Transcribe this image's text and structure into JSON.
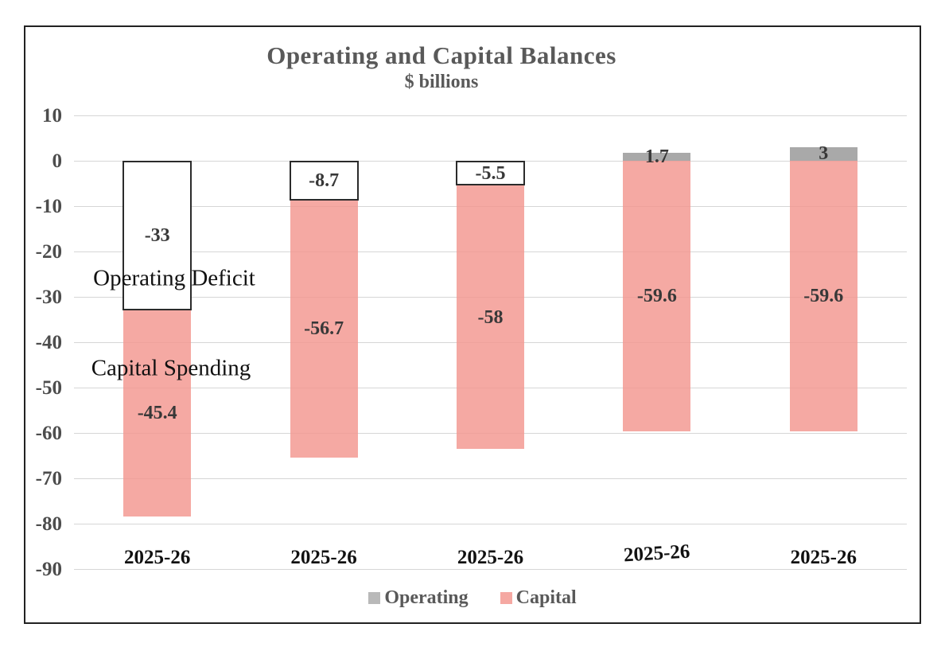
{
  "chart_data": {
    "type": "bar",
    "stacked": true,
    "title": "Operating and Capital Balances",
    "subtitle": "$ billions",
    "categories": [
      "2025-26",
      "2025-26",
      "2025-26",
      "2025-26",
      "2025-26"
    ],
    "series": [
      {
        "name": "Operating",
        "values": [
          -33,
          -8.7,
          -5.5,
          1.7,
          3
        ],
        "labels": [
          "-33",
          "-8.7",
          "-5.5",
          "1.7",
          "3"
        ],
        "positive_color": "#ABABAB",
        "negative_style": "white-outlined"
      },
      {
        "name": "Capital",
        "values": [
          -45.4,
          -56.7,
          -58,
          -59.6,
          -59.6
        ],
        "labels": [
          "-45.4",
          "-56.7",
          "-58",
          "-59.6",
          "-59.6"
        ],
        "color": "#F5A9A3"
      }
    ],
    "ylim": [
      -90,
      10
    ],
    "ytick_step": 10,
    "yticks": [
      "10",
      "0",
      "-10",
      "-20",
      "-30",
      "-40",
      "-50",
      "-60",
      "-70",
      "-80",
      "-90"
    ],
    "grid": true,
    "legend_position": "bottom",
    "legend": [
      {
        "label": "Operating",
        "color": "#B9B9B9"
      },
      {
        "label": "Capital",
        "color": "#F5A8A2"
      }
    ],
    "annotations": [
      {
        "text": "Operating Deficit",
        "x": 219,
        "y": 350
      },
      {
        "text": "Capital Spending",
        "x": 215,
        "y": 463
      }
    ]
  }
}
